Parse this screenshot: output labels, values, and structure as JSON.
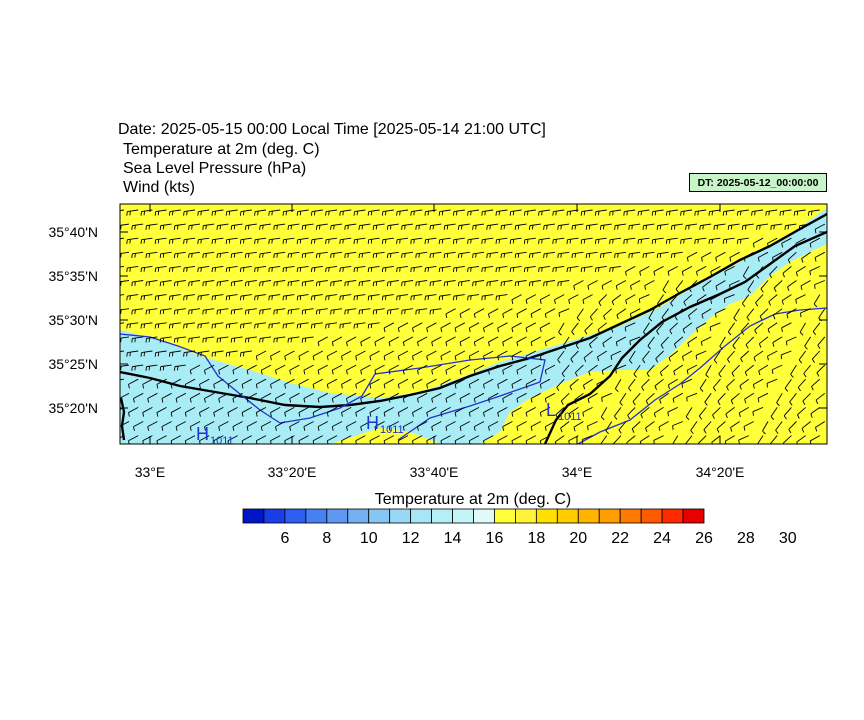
{
  "header": {
    "date_line": "Date: 2025-05-15  00:00 Local Time [2025-05-14  21:00 UTC]",
    "field_lines": [
      "Temperature at 2m   (deg. C)",
      "Sea Level Pressure   (hPa)",
      "Wind   (kts)"
    ],
    "dt_badge": "DT: 2025-05-12_00:00:00"
  },
  "map": {
    "lat_labels": [
      "35°40'N",
      "35°35'N",
      "35°30'N",
      "35°25'N",
      "35°20'N"
    ],
    "lon_labels": [
      "33°E",
      "33°20'E",
      "33°40'E",
      "34°E",
      "34°20'E"
    ],
    "pressure_labels": [
      {
        "letter": "H",
        "value": "1011"
      },
      {
        "letter": "H",
        "value": "1011"
      },
      {
        "letter": "L",
        "value": "1011"
      }
    ],
    "colors": {
      "warm": "#ffff3a",
      "cool": "#a8ecf5",
      "isobar": "#2233cc",
      "coast": "#000000"
    }
  },
  "colorbar": {
    "title": "Temperature at 2m  (deg. C)",
    "labels": [
      "6",
      "8",
      "10",
      "12",
      "14",
      "16",
      "18",
      "20",
      "22",
      "24",
      "26",
      "28",
      "30"
    ],
    "colors": [
      "#0015c8",
      "#1a3ee6",
      "#2f5ff0",
      "#4780f0",
      "#5e98f0",
      "#74b0f0",
      "#86c6f2",
      "#98d8f4",
      "#a8e6f6",
      "#b4eef6",
      "#c4f5f6",
      "#dffaf8",
      "#ffff3a",
      "#fff23a",
      "#ffe000",
      "#ffcc00",
      "#ffb400",
      "#ff9c00",
      "#ff7a00",
      "#ff5a00",
      "#ff2a00",
      "#e60000"
    ]
  }
}
